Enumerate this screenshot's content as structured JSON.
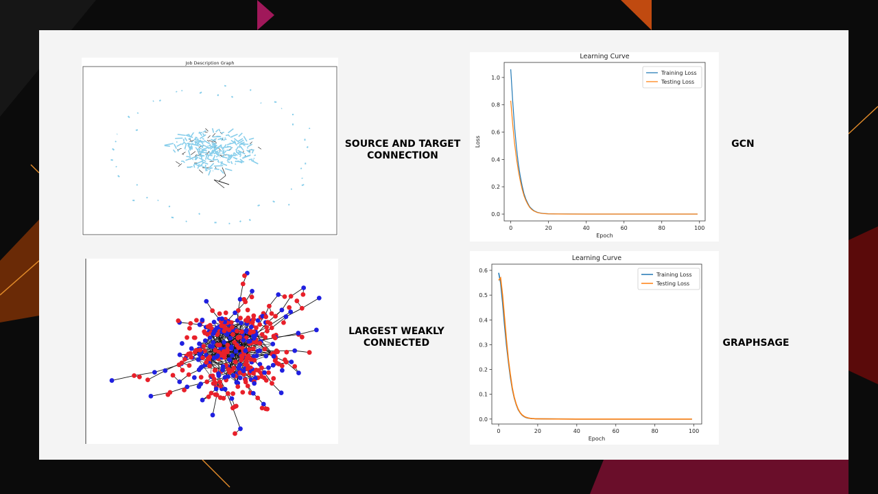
{
  "slide": {
    "labels": {
      "source_target": [
        "SOURCE AND TARGET",
        "CONNECTION"
      ],
      "gcn": "GCN",
      "largest_weakly": [
        "LARGEST WEAKLY",
        "CONNECTED"
      ],
      "graphsage": "GRAPHSAGE"
    }
  },
  "colors": {
    "training": "#1f77b4",
    "testing": "#ff7f0e",
    "graph_light_blue": "#87ceeb",
    "node_red": "#e8202a",
    "node_blue": "#2020e0"
  },
  "job_graph": {
    "title": "Job Description Graph"
  },
  "chart_data": [
    {
      "type": "line",
      "title": "Learning Curve",
      "xlabel": "Epoch",
      "ylabel": "Loss",
      "xlim": [
        -3.5,
        103
      ],
      "ylim": [
        -0.05,
        1.11
      ],
      "xticks": [
        0,
        20,
        40,
        60,
        80,
        100
      ],
      "yticks": [
        "0.0",
        "0.2",
        "0.4",
        "0.6",
        "0.8",
        "1.0"
      ],
      "legend": "top-right",
      "series": [
        {
          "name": "Training Loss",
          "x": [
            0,
            1,
            2,
            3,
            4,
            5,
            6,
            7,
            8,
            9,
            10,
            11,
            12,
            13,
            14,
            15,
            16,
            17,
            18,
            19,
            20,
            25,
            30,
            40,
            50,
            60,
            70,
            80,
            90,
            99
          ],
          "values": [
            1.06,
            0.83,
            0.64,
            0.49,
            0.37,
            0.28,
            0.21,
            0.15,
            0.11,
            0.08,
            0.055,
            0.04,
            0.028,
            0.02,
            0.014,
            0.01,
            0.007,
            0.005,
            0.004,
            0.003,
            0.002,
            0.001,
            0.0005,
            0,
            0,
            0,
            0,
            0,
            0,
            0
          ]
        },
        {
          "name": "Testing Loss",
          "x": [
            0,
            1,
            2,
            3,
            4,
            5,
            6,
            7,
            8,
            9,
            10,
            11,
            12,
            13,
            14,
            15,
            16,
            17,
            18,
            19,
            20,
            25,
            30,
            40,
            50,
            60,
            70,
            80,
            90,
            99
          ],
          "values": [
            0.83,
            0.66,
            0.52,
            0.41,
            0.32,
            0.245,
            0.185,
            0.135,
            0.1,
            0.072,
            0.05,
            0.035,
            0.025,
            0.018,
            0.012,
            0.009,
            0.006,
            0.004,
            0.003,
            0.002,
            0.0015,
            0.0008,
            0.0004,
            0,
            0,
            0,
            0,
            0,
            0,
            0
          ]
        }
      ]
    },
    {
      "type": "line",
      "title": "Learning Curve",
      "xlabel": "Epoch",
      "ylabel": "Loss",
      "xlim": [
        -3.5,
        104
      ],
      "ylim": [
        -0.02,
        0.625
      ],
      "xticks": [
        0,
        20,
        40,
        60,
        80,
        100
      ],
      "yticks": [
        "0.0",
        "0.1",
        "0.2",
        "0.3",
        "0.4",
        "0.5",
        "0.6"
      ],
      "legend": "top-right",
      "series": [
        {
          "name": "Training Loss",
          "x": [
            0,
            1,
            2,
            3,
            4,
            5,
            6,
            7,
            8,
            9,
            10,
            11,
            12,
            13,
            14,
            15,
            16,
            17,
            18,
            19,
            20,
            25,
            30,
            40,
            50,
            60,
            70,
            80,
            90,
            99
          ],
          "values": [
            0.59,
            0.55,
            0.47,
            0.38,
            0.3,
            0.23,
            0.17,
            0.12,
            0.085,
            0.058,
            0.038,
            0.025,
            0.016,
            0.01,
            0.006,
            0.004,
            0.003,
            0.002,
            0.0015,
            0.001,
            0.001,
            0.0005,
            0.0003,
            0,
            0,
            0,
            0,
            0,
            0,
            0
          ]
        },
        {
          "name": "Testing Loss",
          "x": [
            0,
            1,
            2,
            3,
            4,
            5,
            6,
            7,
            8,
            9,
            10,
            11,
            12,
            13,
            14,
            15,
            16,
            17,
            18,
            19,
            20,
            25,
            30,
            40,
            50,
            60,
            70,
            80,
            90,
            99
          ],
          "values": [
            0.56,
            0.57,
            0.5,
            0.41,
            0.32,
            0.24,
            0.18,
            0.125,
            0.088,
            0.06,
            0.04,
            0.026,
            0.017,
            0.011,
            0.007,
            0.005,
            0.003,
            0.002,
            0.0015,
            0.001,
            0.001,
            0.0005,
            0.0003,
            0,
            0,
            0,
            0,
            0,
            0,
            0
          ]
        }
      ]
    }
  ]
}
